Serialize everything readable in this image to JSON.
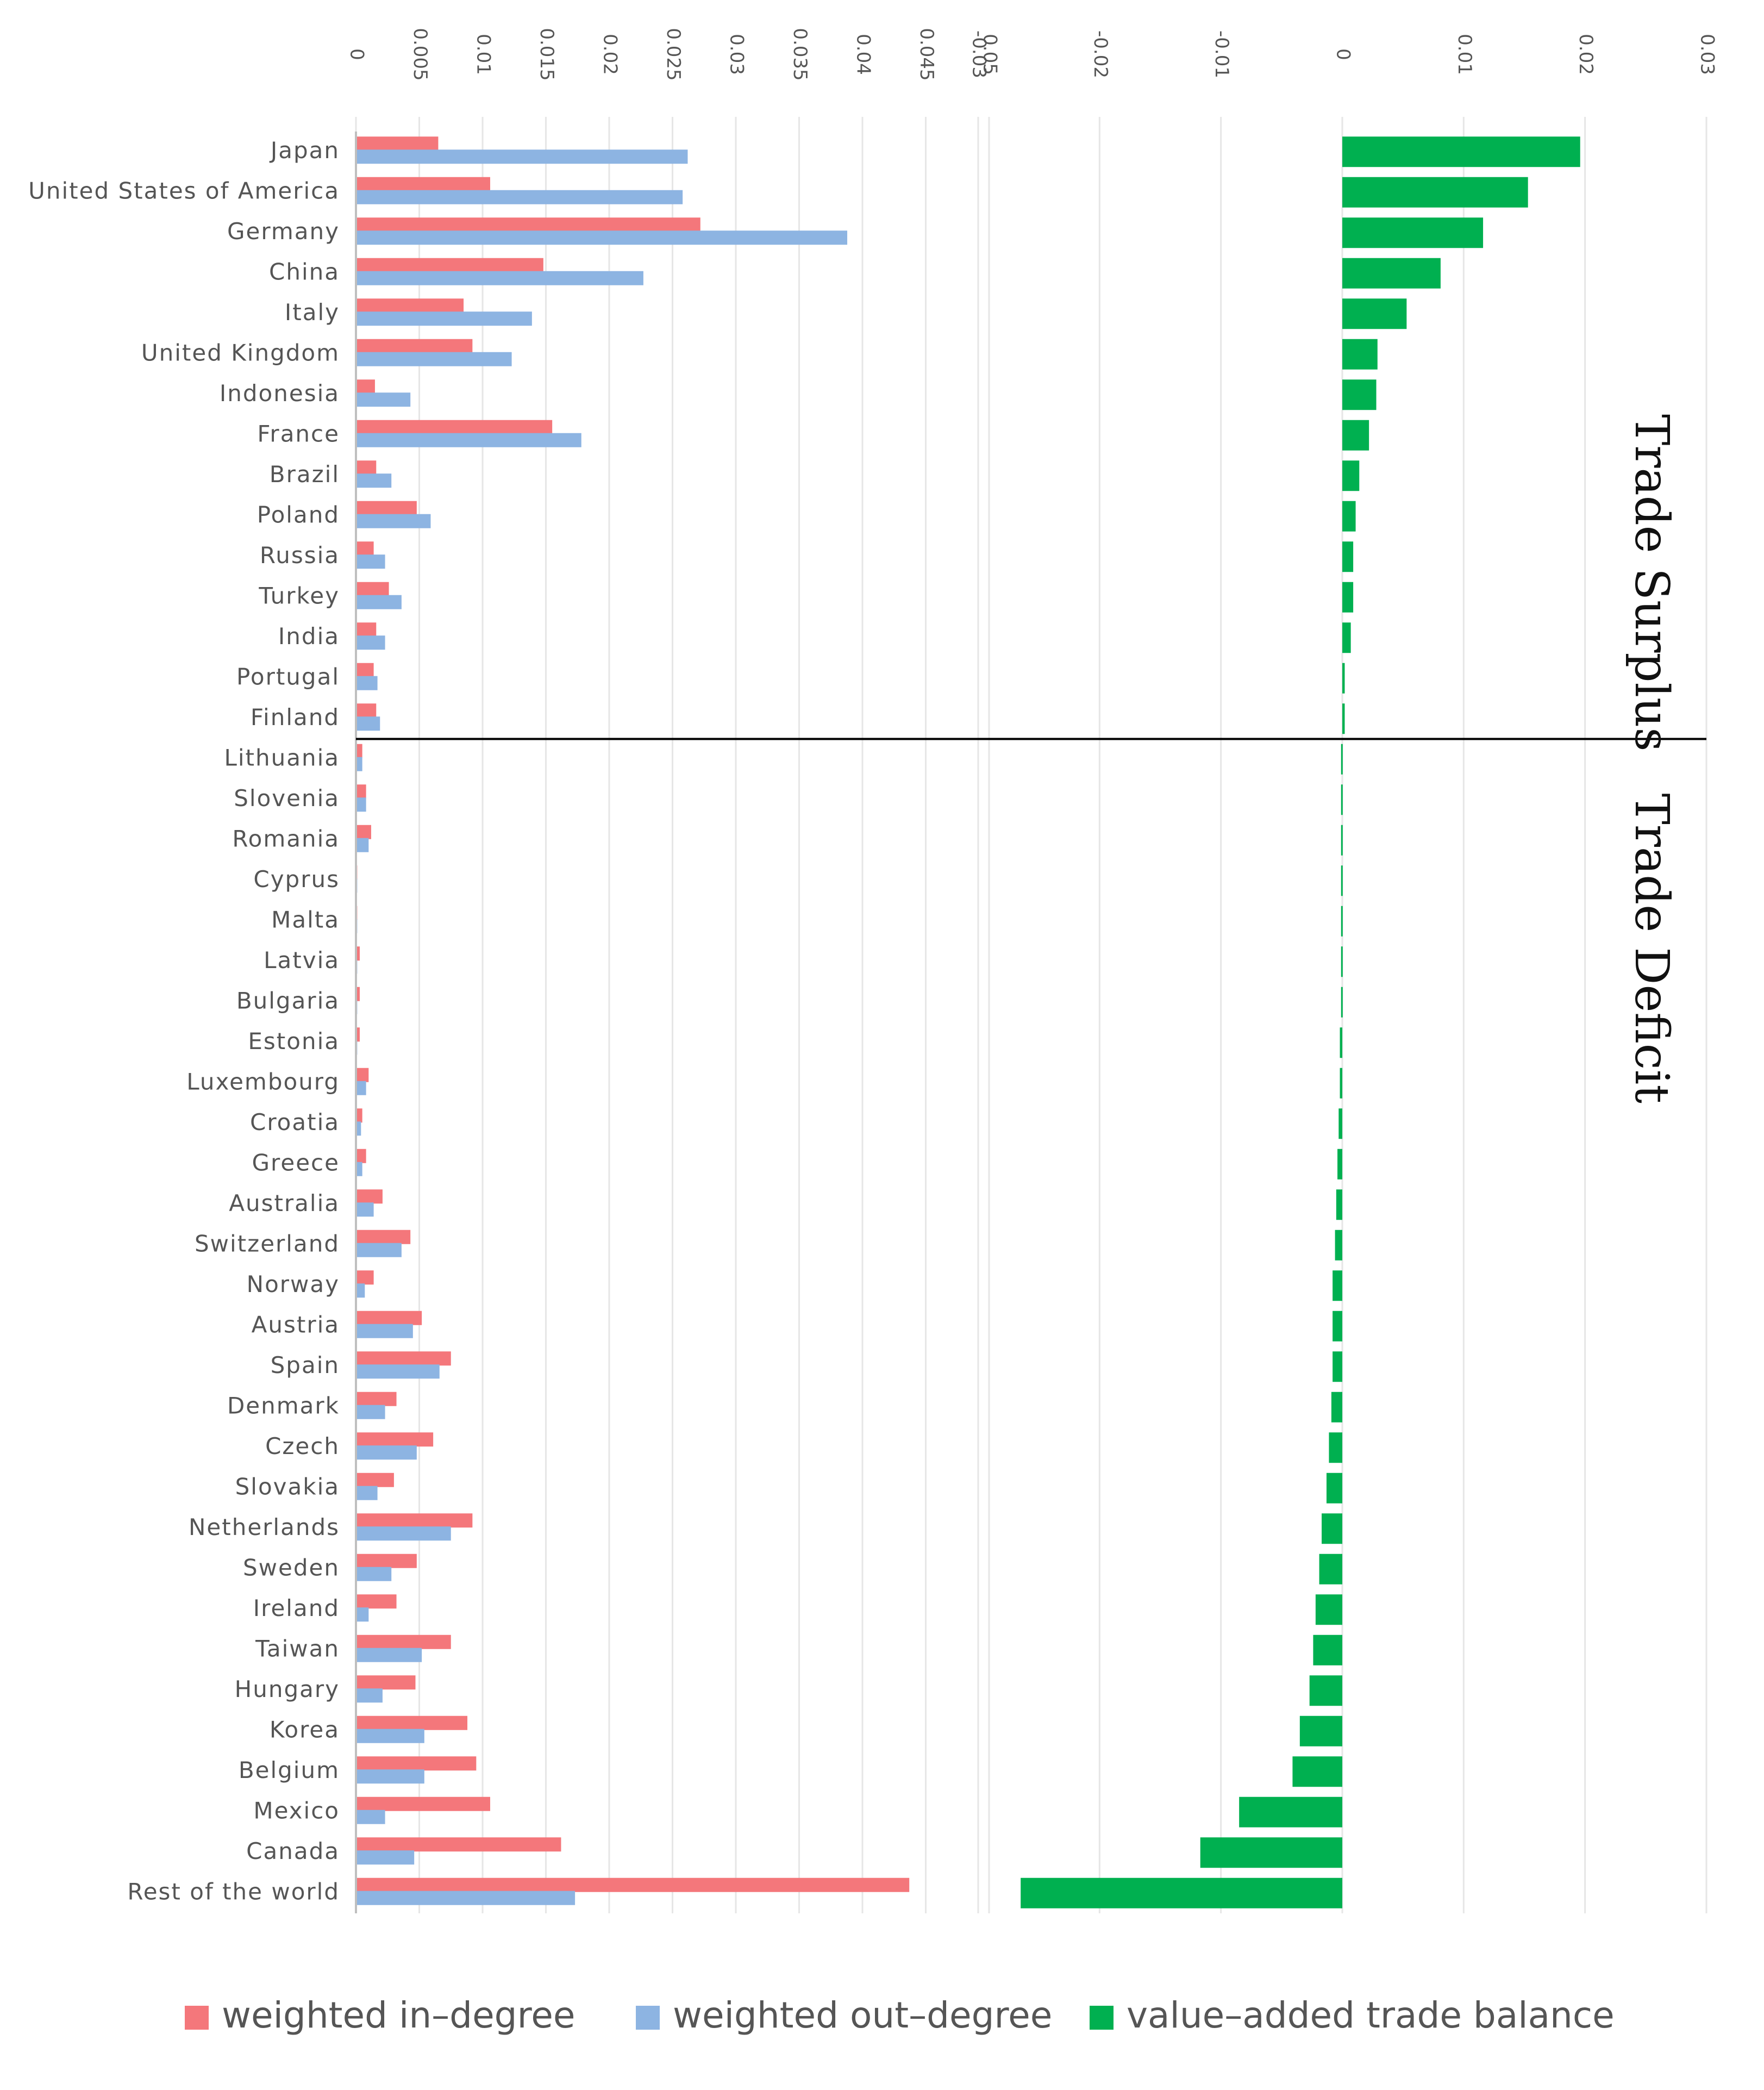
{
  "chart_data": {
    "type": "bar",
    "orientation": "horizontal",
    "categories": [
      "Japan",
      "United States of America",
      "Germany",
      "China",
      "Italy",
      "United Kingdom",
      "Indonesia",
      "France",
      "Brazil",
      "Poland",
      "Russia",
      "Turkey",
      "India",
      "Portugal",
      "Finland",
      "Lithuania",
      "Slovenia",
      "Romania",
      "Cyprus",
      "Malta",
      "Latvia",
      "Bulgaria",
      "Estonia",
      "Luxembourg",
      "Croatia",
      "Greece",
      "Australia",
      "Switzerland",
      "Norway",
      "Austria",
      "Spain",
      "Denmark",
      "Czech",
      "Slovakia",
      "Netherlands",
      "Sweden",
      "Ireland",
      "Taiwan",
      "Hungary",
      "Korea",
      "Belgium",
      "Mexico",
      "Canada",
      "Rest of the world"
    ],
    "panels": [
      {
        "name": "degree",
        "xlim": [
          0,
          0.05
        ],
        "ticks": [
          "0",
          "0.005",
          "0.01",
          "0.015",
          "0.02",
          "0.025",
          "0.03",
          "0.035",
          "0.04",
          "0.045",
          "0.05"
        ],
        "series": [
          {
            "name": "weighted in–degree",
            "color": "#f4777b",
            "values": [
              0.0065,
              0.0106,
              0.0272,
              0.0148,
              0.0085,
              0.0092,
              0.0015,
              0.0155,
              0.0016,
              0.0048,
              0.0014,
              0.0026,
              0.0016,
              0.0014,
              0.0016,
              0.0005,
              0.0008,
              0.0012,
              0.0001,
              0.0001,
              0.0003,
              0.0003,
              0.0003,
              0.001,
              0.0005,
              0.0008,
              0.0021,
              0.0043,
              0.0014,
              0.0052,
              0.0075,
              0.0032,
              0.0061,
              0.003,
              0.0092,
              0.0048,
              0.0032,
              0.0075,
              0.0047,
              0.0088,
              0.0095,
              0.0106,
              0.0162,
              0.0437
            ]
          },
          {
            "name": "weighted out–degree",
            "color": "#8db4e2",
            "values": [
              0.0262,
              0.0258,
              0.0388,
              0.0227,
              0.0139,
              0.0123,
              0.0043,
              0.0178,
              0.0028,
              0.0059,
              0.0023,
              0.0036,
              0.0023,
              0.0017,
              0.0019,
              0.0005,
              0.0008,
              0.001,
              0.0001,
              0.0001,
              0.0001,
              0.0001,
              0.0001,
              0.0008,
              0.0004,
              0.0005,
              0.0014,
              0.0036,
              0.0007,
              0.0045,
              0.0066,
              0.0023,
              0.0048,
              0.0017,
              0.0075,
              0.0028,
              0.001,
              0.0052,
              0.0021,
              0.0054,
              0.0054,
              0.0023,
              0.0046,
              0.0173
            ]
          }
        ]
      },
      {
        "name": "balance",
        "xlim": [
          -0.03,
          0.03
        ],
        "ticks": [
          "-0.03",
          "-0.02",
          "-0.01",
          "0",
          "0.01",
          "0.02",
          "0.03"
        ],
        "series": [
          {
            "name": "value–added trade balance",
            "color": "#00b050",
            "values": [
              0.0196,
              0.0153,
              0.0116,
              0.0081,
              0.0053,
              0.0029,
              0.0028,
              0.0022,
              0.0014,
              0.0011,
              0.0009,
              0.0009,
              0.0007,
              0.0002,
              0.0002,
              -0.0001,
              -0.0001,
              -0.0001,
              -0.0001,
              -0.0001,
              -0.0001,
              -0.0001,
              -0.0002,
              -0.0002,
              -0.0003,
              -0.0004,
              -0.0005,
              -0.0006,
              -0.0008,
              -0.0008,
              -0.0008,
              -0.0009,
              -0.0011,
              -0.0013,
              -0.0017,
              -0.0019,
              -0.0022,
              -0.0024,
              -0.0027,
              -0.0035,
              -0.0041,
              -0.0085,
              -0.0117,
              -0.0265
            ]
          }
        ]
      }
    ],
    "regions": [
      {
        "label": "Trade Surplus",
        "from": 0,
        "to": 14
      },
      {
        "label": "Trade Deficit",
        "from": 15,
        "to": 43
      }
    ],
    "legend": {
      "placement": "bottom",
      "items": [
        {
          "label": "weighted in–degree",
          "color": "#f4777b"
        },
        {
          "label": "weighted out–degree",
          "color": "#8db4e2"
        },
        {
          "label": "value–added trade balance",
          "color": "#00b050"
        }
      ]
    },
    "grid": true,
    "tick_label_rotation": 90
  }
}
